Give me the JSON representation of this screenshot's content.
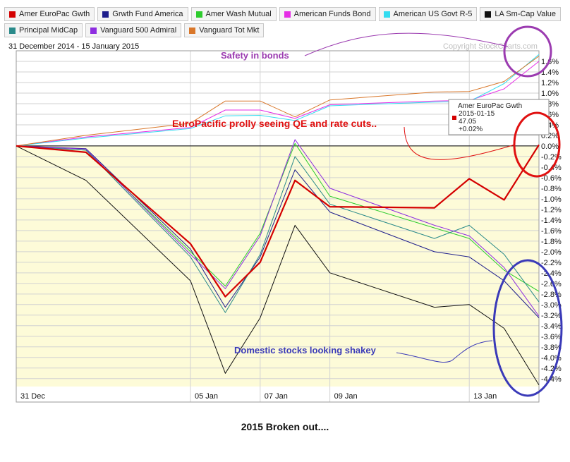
{
  "date_range": "31 December 2014 - 15 January 2015",
  "copyright": "Copyright StockCharts.com",
  "caption": "2015 Broken out....",
  "chart_data": {
    "type": "line",
    "title": "",
    "xlabel": "",
    "ylabel": "",
    "ylim": [
      -4.5,
      1.8
    ],
    "grid": true,
    "legend_placement": "top",
    "x": [
      "2014-12-31",
      "2015-01-02",
      "2015-01-05",
      "2015-01-06",
      "2015-01-07",
      "2015-01-08",
      "2015-01-09",
      "2015-01-12",
      "2015-01-13",
      "2015-01-14",
      "2015-01-15"
    ],
    "x_tick_labels": [
      {
        "x": "2014-12-31",
        "label": "31  Dec"
      },
      {
        "x": "2015-01-05",
        "label": "05  Jan"
      },
      {
        "x": "2015-01-07",
        "label": "07  Jan"
      },
      {
        "x": "2015-01-09",
        "label": "09  Jan"
      },
      {
        "x": "2015-01-13",
        "label": "13  Jan"
      }
    ],
    "y_ticks": [
      1.6,
      1.4,
      1.2,
      1.0,
      0.8,
      0.6,
      0.4,
      0.2,
      0.0,
      -0.2,
      -0.4,
      -0.6,
      -0.8,
      -1.0,
      -1.2,
      -1.4,
      -1.6,
      -1.8,
      -2.0,
      -2.2,
      -2.4,
      -2.6,
      -2.8,
      -3.0,
      -3.2,
      -3.4,
      -3.6,
      -3.8,
      -4.0,
      -4.2,
      -4.4
    ],
    "series": [
      {
        "name": "Amer EuroPac Gwth",
        "color": "#d40000",
        "width": 2.2,
        "values": [
          0.0,
          -0.12,
          -1.85,
          -2.85,
          -2.2,
          -0.65,
          -1.15,
          -1.17,
          -0.62,
          -1.02,
          0.02
        ]
      },
      {
        "name": "Grwth Fund America",
        "color": "#1e1e8c",
        "width": 1,
        "values": [
          0.0,
          -0.05,
          -1.95,
          -3.05,
          -2.1,
          -0.45,
          -1.25,
          -2.0,
          -2.1,
          -2.55,
          -3.25
        ]
      },
      {
        "name": "Amer Wash Mutual",
        "color": "#2ecc2e",
        "width": 1,
        "values": [
          0.0,
          -0.08,
          -2.0,
          -2.65,
          -1.65,
          0.05,
          -0.95,
          -1.55,
          -1.75,
          -2.35,
          -2.75
        ]
      },
      {
        "name": "American Funds Bond",
        "color": "#e62ee6",
        "width": 1,
        "values": [
          0.0,
          0.17,
          0.35,
          0.68,
          0.68,
          0.52,
          0.78,
          0.85,
          0.86,
          1.08,
          1.6
        ]
      },
      {
        "name": "American US Govt R-5",
        "color": "#33dcf0",
        "width": 1,
        "values": [
          0.0,
          0.15,
          0.33,
          0.57,
          0.58,
          0.48,
          0.76,
          0.83,
          0.84,
          1.18,
          1.73
        ]
      },
      {
        "name": "LA Sm-Cap Value",
        "color": "#111111",
        "width": 1,
        "values": [
          0.0,
          -0.65,
          -2.55,
          -4.3,
          -3.25,
          -1.5,
          -2.4,
          -3.05,
          -3.0,
          -3.45,
          -4.52
        ]
      },
      {
        "name": "Principal MidCap",
        "color": "#2a8a8a",
        "width": 1,
        "values": [
          0.0,
          -0.08,
          -2.1,
          -3.15,
          -2.05,
          -0.2,
          -1.1,
          -1.75,
          -1.5,
          -2.05,
          -2.95
        ]
      },
      {
        "name": "Vanguard 500 Admiral",
        "color": "#8e2ee0",
        "width": 1,
        "values": [
          0.0,
          -0.06,
          -2.05,
          -2.7,
          -1.7,
          0.12,
          -0.8,
          -1.5,
          -1.7,
          -2.3,
          -3.22
        ]
      },
      {
        "name": "Vanguard Tot Mkt",
        "color": "#d9772a",
        "width": 1,
        "values": [
          0.0,
          0.2,
          0.43,
          0.85,
          0.85,
          0.55,
          0.87,
          1.02,
          1.03,
          1.22,
          1.7
        ]
      }
    ],
    "tooltip": {
      "series": "Amer EuroPac Gwth",
      "lines": [
        "Amer EuroPac Gwth",
        "2015-01-15",
        "47.05",
        "+0.02%"
      ],
      "color": "#d40000"
    },
    "annotations": [
      {
        "text": "Safety in bonds",
        "color": "#9b3bb0"
      },
      {
        "text": "EuroPacific prolly seeing QE and rate  cuts..",
        "color": "#e01010"
      },
      {
        "text": "Domestic stocks looking shakey",
        "color": "#3a3ab8"
      }
    ]
  }
}
